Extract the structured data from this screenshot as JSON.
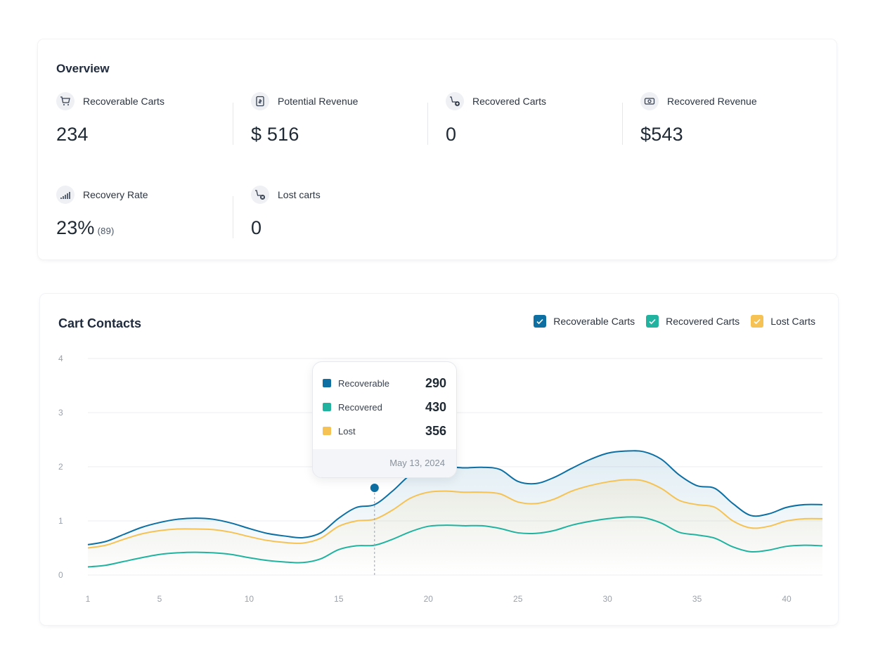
{
  "overview": {
    "title": "Overview",
    "stats": [
      {
        "label": "Recoverable Carts",
        "value": "234",
        "icon": "cart-icon"
      },
      {
        "label": "Potential Revenue",
        "value": "$ 516",
        "icon": "revenue-document-icon"
      },
      {
        "label": "Recovered Carts",
        "value": "0",
        "icon": "cart-add-icon"
      },
      {
        "label": "Recovered Revenue",
        "value": "$543",
        "icon": "cash-icon"
      },
      {
        "label": "Recovery Rate",
        "value": "23%",
        "sub": "(89)",
        "icon": "bar-growth-icon"
      },
      {
        "label": "Lost carts",
        "value": "0",
        "icon": "cart-remove-icon"
      }
    ]
  },
  "chart_section": {
    "title": "Cart Contacts",
    "legend": [
      {
        "label": "Recoverable Carts",
        "color": "#0e6fa3"
      },
      {
        "label": "Recovered Carts",
        "color": "#21b39f"
      },
      {
        "label": "Lost Carts",
        "color": "#f5c253"
      }
    ],
    "tooltip": {
      "rows": [
        {
          "label": "Recoverable",
          "value": "290",
          "color": "#0e6fa3"
        },
        {
          "label": "Recovered",
          "value": "430",
          "color": "#21b39f"
        },
        {
          "label": "Lost",
          "value": "356",
          "color": "#f5c253"
        }
      ],
      "date": "May 13, 2024"
    }
  },
  "chart_data": {
    "type": "line",
    "ylim": [
      0,
      4
    ],
    "yticks": [
      "0",
      "1",
      "2",
      "3",
      "4"
    ],
    "xlim": [
      1,
      42
    ],
    "xticks": [
      "1",
      "5",
      "10",
      "15",
      "20",
      "25",
      "30",
      "35",
      "40"
    ],
    "grid": true,
    "legend_position": "top-right",
    "highlight_x": 17,
    "series": [
      {
        "name": "Recoverable Carts",
        "color": "#0e6fa3",
        "x": [
          1,
          2,
          3,
          4,
          5,
          6,
          7,
          8,
          9,
          10,
          11,
          12,
          13,
          14,
          15,
          16,
          17,
          18,
          19,
          20,
          21,
          22,
          23,
          24,
          25,
          26,
          27,
          28,
          29,
          30,
          31,
          32,
          33,
          34,
          35,
          36,
          37,
          38,
          39,
          40,
          41,
          42
        ],
        "values": [
          0.56,
          0.62,
          0.75,
          0.88,
          0.97,
          1.03,
          1.05,
          1.03,
          0.96,
          0.86,
          0.77,
          0.72,
          0.69,
          0.78,
          1.05,
          1.25,
          1.3,
          1.55,
          1.85,
          1.99,
          2.0,
          1.98,
          1.99,
          1.95,
          1.73,
          1.69,
          1.8,
          1.97,
          2.13,
          2.25,
          2.29,
          2.28,
          2.14,
          1.85,
          1.65,
          1.6,
          1.32,
          1.1,
          1.13,
          1.25,
          1.3,
          1.3
        ]
      },
      {
        "name": "Recovered Carts",
        "color": "#21b39f",
        "x": [
          1,
          2,
          3,
          4,
          5,
          6,
          7,
          8,
          9,
          10,
          11,
          12,
          13,
          14,
          15,
          16,
          17,
          18,
          19,
          20,
          21,
          22,
          23,
          24,
          25,
          26,
          27,
          28,
          29,
          30,
          31,
          32,
          33,
          34,
          35,
          36,
          37,
          38,
          39,
          40,
          41,
          42
        ],
        "values": [
          0.15,
          0.18,
          0.25,
          0.32,
          0.38,
          0.41,
          0.42,
          0.41,
          0.38,
          0.32,
          0.27,
          0.24,
          0.23,
          0.3,
          0.47,
          0.54,
          0.55,
          0.66,
          0.8,
          0.9,
          0.92,
          0.91,
          0.91,
          0.86,
          0.78,
          0.77,
          0.82,
          0.92,
          0.99,
          1.04,
          1.07,
          1.06,
          0.96,
          0.79,
          0.74,
          0.68,
          0.52,
          0.43,
          0.46,
          0.53,
          0.55,
          0.54
        ]
      },
      {
        "name": "Lost Carts",
        "color": "#f5c253",
        "x": [
          1,
          2,
          3,
          4,
          5,
          6,
          7,
          8,
          9,
          10,
          11,
          12,
          13,
          14,
          15,
          16,
          17,
          18,
          19,
          20,
          21,
          22,
          23,
          24,
          25,
          26,
          27,
          28,
          29,
          30,
          31,
          32,
          33,
          34,
          35,
          36,
          37,
          38,
          39,
          40,
          41,
          42
        ],
        "values": [
          0.5,
          0.55,
          0.66,
          0.76,
          0.82,
          0.85,
          0.85,
          0.84,
          0.79,
          0.71,
          0.64,
          0.6,
          0.59,
          0.68,
          0.9,
          1.0,
          1.03,
          1.2,
          1.42,
          1.53,
          1.55,
          1.53,
          1.53,
          1.5,
          1.35,
          1.32,
          1.4,
          1.55,
          1.65,
          1.72,
          1.76,
          1.74,
          1.6,
          1.38,
          1.3,
          1.25,
          1.0,
          0.87,
          0.9,
          1.0,
          1.04,
          1.04
        ]
      }
    ]
  }
}
